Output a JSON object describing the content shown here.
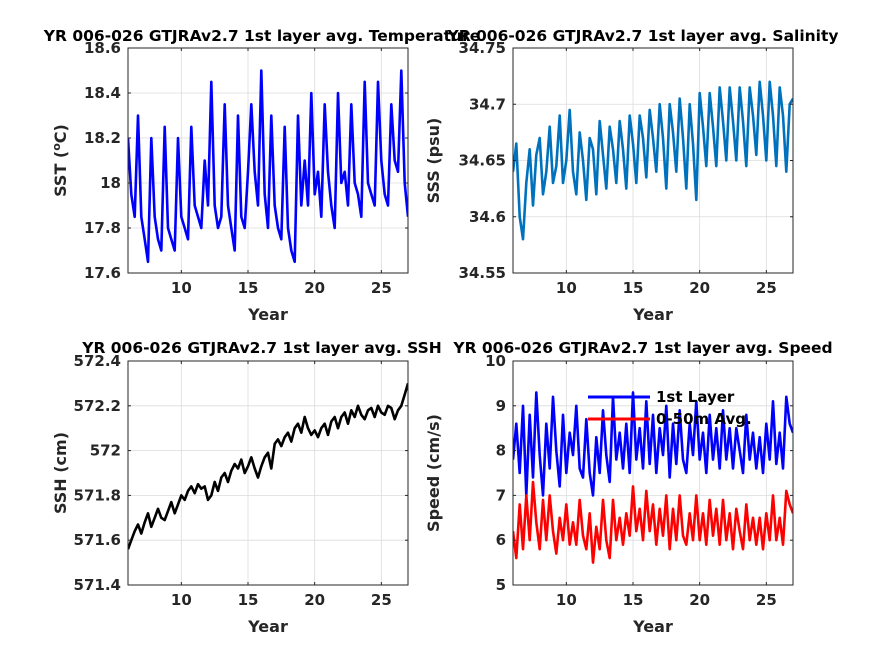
{
  "chart_data": [
    {
      "type": "line",
      "title": "YR 006-026 GTJRAv2.7 1st layer avg. Temperature",
      "xlabel": "Year",
      "ylabel_main": "SST (",
      "ylabel_sup": "o",
      "ylabel_end": "C)",
      "xlim": [
        6,
        27
      ],
      "ylim": [
        17.6,
        18.6
      ],
      "xticks": [
        10,
        15,
        20,
        25
      ],
      "yticks": [
        17.6,
        17.8,
        18,
        18.2,
        18.4,
        18.6
      ],
      "ytick_labels": [
        "17.6",
        "17.8",
        "18",
        "18.2",
        "18.4",
        "18.6"
      ],
      "grid": true,
      "series": [
        {
          "color": "#0000ff",
          "x": [
            6,
            6.25,
            6.5,
            6.75,
            7,
            7.25,
            7.5,
            7.75,
            8,
            8.25,
            8.5,
            8.75,
            9,
            9.25,
            9.5,
            9.75,
            10,
            10.25,
            10.5,
            10.75,
            11,
            11.25,
            11.5,
            11.75,
            12,
            12.25,
            12.5,
            12.75,
            13,
            13.25,
            13.5,
            13.75,
            14,
            14.25,
            14.5,
            14.75,
            15,
            15.25,
            15.5,
            15.75,
            16,
            16.25,
            16.5,
            16.75,
            17,
            17.25,
            17.5,
            17.75,
            18,
            18.25,
            18.5,
            18.75,
            19,
            19.25,
            19.5,
            19.75,
            20,
            20.25,
            20.5,
            20.75,
            21,
            21.25,
            21.5,
            21.75,
            22,
            22.25,
            22.5,
            22.75,
            23,
            23.25,
            23.5,
            23.75,
            24,
            24.25,
            24.5,
            24.75,
            25,
            25.25,
            25.5,
            25.75,
            26,
            26.25,
            26.5,
            26.75,
            27
          ],
          "y": [
            18.2,
            17.95,
            17.85,
            18.3,
            17.85,
            17.75,
            17.65,
            18.2,
            17.85,
            17.75,
            17.7,
            18.25,
            17.8,
            17.75,
            17.7,
            18.2,
            17.85,
            17.8,
            17.75,
            18.25,
            17.9,
            17.85,
            17.8,
            18.1,
            17.9,
            18.45,
            17.9,
            17.8,
            17.85,
            18.35,
            17.9,
            17.8,
            17.7,
            18.3,
            17.85,
            17.8,
            18.05,
            18.35,
            18.05,
            17.9,
            18.5,
            17.95,
            17.8,
            18.3,
            17.9,
            17.8,
            17.75,
            18.25,
            17.8,
            17.7,
            17.65,
            18.3,
            17.9,
            18.1,
            17.9,
            18.4,
            17.95,
            18.05,
            17.85,
            18.35,
            18.05,
            17.9,
            17.8,
            18.4,
            18.0,
            18.05,
            17.9,
            18.35,
            18.0,
            17.95,
            17.85,
            18.45,
            18.0,
            17.95,
            17.9,
            18.45,
            18.1,
            17.95,
            17.9,
            18.35,
            18.1,
            18.05,
            18.5,
            18.0,
            17.85
          ]
        }
      ]
    },
    {
      "type": "line",
      "title": "YR 006-026 GTJRAv2.7 1st layer avg. Salinity",
      "xlabel": "Year",
      "ylabel_main": "SSS (psu)",
      "ylabel_sup": "",
      "ylabel_end": "",
      "xlim": [
        6,
        27
      ],
      "ylim": [
        34.55,
        34.75
      ],
      "xticks": [
        10,
        15,
        20,
        25
      ],
      "yticks": [
        34.55,
        34.6,
        34.65,
        34.7,
        34.75
      ],
      "ytick_labels": [
        "34.55",
        "34.6",
        "34.65",
        "34.7",
        "34.75"
      ],
      "grid": true,
      "series": [
        {
          "color": "#0072bd",
          "x": [
            6,
            6.25,
            6.5,
            6.75,
            7,
            7.25,
            7.5,
            7.75,
            8,
            8.25,
            8.5,
            8.75,
            9,
            9.25,
            9.5,
            9.75,
            10,
            10.25,
            10.5,
            10.75,
            11,
            11.25,
            11.5,
            11.75,
            12,
            12.25,
            12.5,
            12.75,
            13,
            13.25,
            13.5,
            13.75,
            14,
            14.25,
            14.5,
            14.75,
            15,
            15.25,
            15.5,
            15.75,
            16,
            16.25,
            16.5,
            16.75,
            17,
            17.25,
            17.5,
            17.75,
            18,
            18.25,
            18.5,
            18.75,
            19,
            19.25,
            19.5,
            19.75,
            20,
            20.25,
            20.5,
            20.75,
            21,
            21.25,
            21.5,
            21.75,
            22,
            22.25,
            22.5,
            22.75,
            23,
            23.25,
            23.5,
            23.75,
            24,
            24.25,
            24.5,
            24.75,
            25,
            25.25,
            25.5,
            25.75,
            26,
            26.25,
            26.5,
            26.75,
            27
          ],
          "y": [
            34.64,
            34.665,
            34.6,
            34.58,
            34.63,
            34.66,
            34.61,
            34.655,
            34.67,
            34.62,
            34.64,
            34.68,
            34.63,
            34.645,
            34.69,
            34.63,
            34.65,
            34.695,
            34.64,
            34.62,
            34.675,
            34.65,
            34.615,
            34.67,
            34.66,
            34.62,
            34.685,
            34.655,
            34.625,
            34.68,
            34.66,
            34.63,
            34.685,
            34.66,
            34.625,
            34.69,
            34.665,
            34.63,
            34.69,
            34.67,
            34.635,
            34.695,
            34.67,
            34.64,
            34.7,
            34.67,
            34.625,
            34.7,
            34.675,
            34.64,
            34.705,
            34.67,
            34.625,
            34.7,
            34.665,
            34.615,
            34.71,
            34.68,
            34.645,
            34.71,
            34.68,
            34.645,
            34.715,
            34.685,
            34.65,
            34.715,
            34.685,
            34.65,
            34.715,
            34.685,
            34.645,
            34.715,
            34.69,
            34.655,
            34.72,
            34.69,
            34.65,
            34.72,
            34.69,
            34.645,
            34.715,
            34.69,
            34.64,
            34.7,
            34.705
          ]
        }
      ]
    },
    {
      "type": "line",
      "title": "YR 006-026 GTJRAv2.7 1st layer avg. SSH",
      "xlabel": "Year",
      "ylabel_main": "SSH (cm)",
      "ylabel_sup": "",
      "ylabel_end": "",
      "xlim": [
        6,
        27
      ],
      "ylim": [
        571.4,
        572.4
      ],
      "xticks": [
        10,
        15,
        20,
        25
      ],
      "yticks": [
        571.4,
        571.6,
        571.8,
        572,
        572.2,
        572.4
      ],
      "ytick_labels": [
        "571.4",
        "571.6",
        "571.8",
        "572",
        "572.2",
        "572.4"
      ],
      "grid": true,
      "series": [
        {
          "color": "#000000",
          "x": [
            6,
            6.25,
            6.5,
            6.75,
            7,
            7.25,
            7.5,
            7.75,
            8,
            8.25,
            8.5,
            8.75,
            9,
            9.25,
            9.5,
            9.75,
            10,
            10.25,
            10.5,
            10.75,
            11,
            11.25,
            11.5,
            11.75,
            12,
            12.25,
            12.5,
            12.75,
            13,
            13.25,
            13.5,
            13.75,
            14,
            14.25,
            14.5,
            14.75,
            15,
            15.25,
            15.5,
            15.75,
            16,
            16.25,
            16.5,
            16.75,
            17,
            17.25,
            17.5,
            17.75,
            18,
            18.25,
            18.5,
            18.75,
            19,
            19.25,
            19.5,
            19.75,
            20,
            20.25,
            20.5,
            20.75,
            21,
            21.25,
            21.5,
            21.75,
            22,
            22.25,
            22.5,
            22.75,
            23,
            23.25,
            23.5,
            23.75,
            24,
            24.25,
            24.5,
            24.75,
            25,
            25.25,
            25.5,
            25.75,
            26,
            26.25,
            26.5,
            26.75,
            27
          ],
          "y": [
            571.56,
            571.6,
            571.64,
            571.67,
            571.63,
            571.68,
            571.72,
            571.66,
            571.7,
            571.74,
            571.7,
            571.69,
            571.73,
            571.77,
            571.72,
            571.76,
            571.8,
            571.78,
            571.82,
            571.84,
            571.81,
            571.85,
            571.83,
            571.84,
            571.78,
            571.8,
            571.86,
            571.82,
            571.88,
            571.9,
            571.86,
            571.91,
            571.94,
            571.92,
            571.96,
            571.9,
            571.93,
            571.97,
            571.92,
            571.88,
            571.93,
            571.97,
            571.99,
            571.92,
            572.03,
            572.05,
            572.02,
            572.06,
            572.08,
            572.04,
            572.1,
            572.12,
            572.08,
            572.15,
            572.1,
            572.07,
            572.09,
            572.06,
            572.1,
            572.12,
            572.07,
            572.13,
            572.15,
            572.1,
            572.15,
            572.17,
            572.12,
            572.18,
            572.15,
            572.2,
            572.16,
            572.14,
            572.18,
            572.19,
            572.15,
            572.2,
            572.17,
            572.16,
            572.2,
            572.19,
            572.14,
            572.18,
            572.2,
            572.25,
            572.3
          ]
        }
      ]
    },
    {
      "type": "line",
      "title": "YR 006-026 GTJRAv2.7 1st layer avg. Speed",
      "xlabel": "Year",
      "ylabel_main": "Speed (cm/s)",
      "ylabel_sup": "",
      "ylabel_end": "",
      "xlim": [
        6,
        27
      ],
      "ylim": [
        5,
        10
      ],
      "xticks": [
        10,
        15,
        20,
        25
      ],
      "yticks": [
        5,
        6,
        7,
        8,
        9,
        10
      ],
      "ytick_labels": [
        "5",
        "6",
        "7",
        "8",
        "9",
        "10"
      ],
      "grid": true,
      "legend": {
        "position": "top-right",
        "entries": [
          "1st Layer",
          "0-50m Avg."
        ]
      },
      "series": [
        {
          "name": "1st Layer",
          "color": "#0000ff",
          "x": [
            6,
            6.25,
            6.5,
            6.75,
            7,
            7.25,
            7.5,
            7.75,
            8,
            8.25,
            8.5,
            8.75,
            9,
            9.25,
            9.5,
            9.75,
            10,
            10.25,
            10.5,
            10.75,
            11,
            11.25,
            11.5,
            11.75,
            12,
            12.25,
            12.5,
            12.75,
            13,
            13.25,
            13.5,
            13.75,
            14,
            14.25,
            14.5,
            14.75,
            15,
            15.25,
            15.5,
            15.75,
            16,
            16.25,
            16.5,
            16.75,
            17,
            17.25,
            17.5,
            17.75,
            18,
            18.25,
            18.5,
            18.75,
            19,
            19.25,
            19.5,
            19.75,
            20,
            20.25,
            20.5,
            20.75,
            21,
            21.25,
            21.5,
            21.75,
            22,
            22.25,
            22.5,
            22.75,
            23,
            23.25,
            23.5,
            23.75,
            24,
            24.25,
            24.5,
            24.75,
            25,
            25.25,
            25.5,
            25.75,
            26,
            26.25,
            26.5,
            26.75,
            27
          ],
          "y": [
            7.8,
            8.6,
            7.5,
            9.0,
            7.0,
            8.8,
            7.4,
            9.3,
            7.9,
            7.0,
            8.6,
            7.6,
            9.2,
            8.0,
            7.2,
            8.8,
            7.5,
            8.4,
            7.9,
            9.0,
            7.6,
            7.4,
            8.7,
            7.5,
            7.0,
            8.3,
            7.5,
            8.9,
            7.9,
            7.3,
            9.2,
            7.8,
            8.4,
            7.6,
            8.6,
            7.5,
            9.3,
            7.8,
            8.5,
            7.6,
            9.1,
            7.7,
            8.8,
            7.5,
            8.5,
            7.9,
            9.0,
            7.4,
            8.6,
            7.7,
            8.9,
            7.8,
            7.5,
            8.6,
            7.9,
            9.1,
            7.8,
            8.4,
            7.5,
            8.8,
            7.8,
            8.5,
            7.6,
            8.9,
            7.8,
            8.5,
            7.6,
            8.5,
            8.0,
            7.5,
            8.8,
            7.8,
            8.4,
            7.6,
            8.3,
            7.5,
            8.6,
            7.8,
            9.1,
            7.7,
            8.4,
            7.6,
            9.2,
            8.6,
            8.4
          ]
        },
        {
          "name": "0-50m Avg.",
          "color": "#ff0000",
          "x": [
            6,
            6.25,
            6.5,
            6.75,
            7,
            7.25,
            7.5,
            7.75,
            8,
            8.25,
            8.5,
            8.75,
            9,
            9.25,
            9.5,
            9.75,
            10,
            10.25,
            10.5,
            10.75,
            11,
            11.25,
            11.5,
            11.75,
            12,
            12.25,
            12.5,
            12.75,
            13,
            13.25,
            13.5,
            13.75,
            14,
            14.25,
            14.5,
            14.75,
            15,
            15.25,
            15.5,
            15.75,
            16,
            16.25,
            16.5,
            16.75,
            17,
            17.25,
            17.5,
            17.75,
            18,
            18.25,
            18.5,
            18.75,
            19,
            19.25,
            19.5,
            19.75,
            20,
            20.25,
            20.5,
            20.75,
            21,
            21.25,
            21.5,
            21.75,
            22,
            22.25,
            22.5,
            22.75,
            23,
            23.25,
            23.5,
            23.75,
            24,
            24.25,
            24.5,
            24.75,
            25,
            25.25,
            25.5,
            25.75,
            26,
            26.25,
            26.5,
            26.75,
            27
          ],
          "y": [
            6.2,
            5.6,
            6.8,
            5.8,
            7.0,
            6.0,
            7.3,
            6.4,
            5.8,
            6.9,
            6.0,
            7.0,
            6.2,
            5.7,
            6.5,
            6.0,
            6.8,
            5.9,
            6.4,
            5.9,
            6.9,
            6.1,
            5.8,
            6.6,
            5.5,
            6.3,
            5.8,
            6.9,
            6.0,
            5.6,
            6.9,
            6.0,
            6.5,
            5.9,
            6.6,
            6.1,
            7.2,
            6.2,
            6.7,
            6.0,
            7.1,
            6.2,
            6.8,
            5.9,
            6.7,
            6.1,
            7.0,
            5.8,
            6.7,
            6.0,
            7.0,
            6.1,
            5.9,
            6.6,
            6.0,
            7.0,
            6.0,
            6.6,
            5.9,
            6.9,
            6.1,
            6.7,
            5.9,
            6.9,
            6.0,
            6.6,
            5.8,
            6.7,
            6.2,
            5.8,
            6.8,
            6.0,
            6.5,
            5.9,
            6.5,
            5.8,
            6.6,
            6.0,
            7.0,
            6.0,
            6.5,
            5.9,
            7.1,
            6.8,
            6.6
          ]
        }
      ]
    }
  ]
}
